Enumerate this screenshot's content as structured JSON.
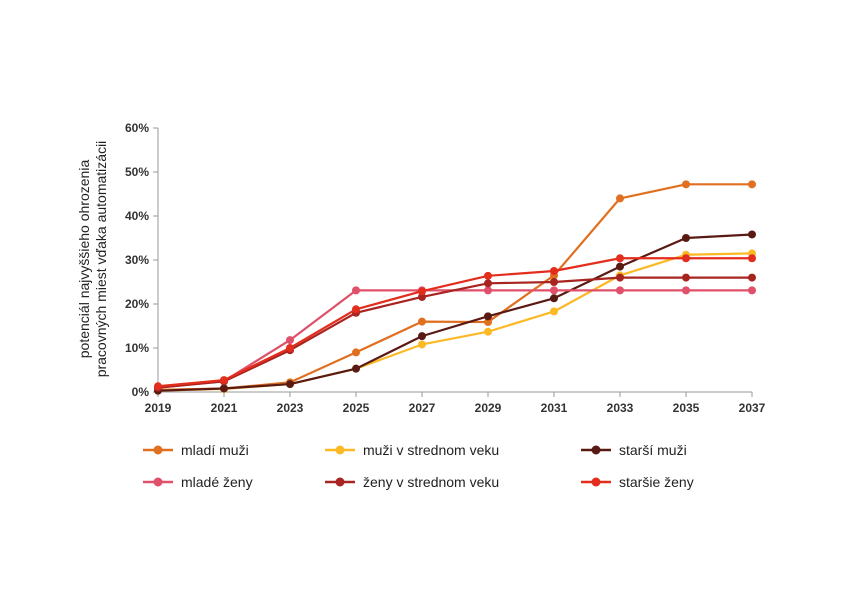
{
  "chart_data": {
    "type": "line",
    "ylabel": "potenciál najvyššieho ohrozenia pracovných miest vďaka automatizácii",
    "ylabel_lines": [
      "potenciál najvyššieho ohrozenia",
      "pracovných miest vďaka automatizácii"
    ],
    "x": [
      2019,
      2021,
      2023,
      2025,
      2027,
      2029,
      2031,
      2033,
      2035,
      2037
    ],
    "x_tick_labels": [
      "2019",
      "2021",
      "2023",
      "2025",
      "2027",
      "2029",
      "2031",
      "2033",
      "2035",
      "2037"
    ],
    "ylim": [
      0,
      60
    ],
    "y_ticks": [
      0,
      10,
      20,
      30,
      40,
      50,
      60
    ],
    "y_tick_labels": [
      "0%",
      "10%",
      "20%",
      "30%",
      "40%",
      "50%",
      "60%"
    ],
    "grid": false,
    "legend_position": "bottom",
    "series": [
      {
        "name": "mladí muži",
        "color": "#e07020",
        "values": [
          0.5,
          0.8,
          2.2,
          9.0,
          16.0,
          15.9,
          26.5,
          44.0,
          47.2,
          47.2
        ]
      },
      {
        "name": "muži v strednom veku",
        "color": "#fbb926",
        "values": [
          0.3,
          0.7,
          1.8,
          5.3,
          10.8,
          13.7,
          18.3,
          26.5,
          31.2,
          31.5
        ]
      },
      {
        "name": "starší muži",
        "color": "#5a1a14",
        "values": [
          0.3,
          0.8,
          1.8,
          5.3,
          12.7,
          17.2,
          21.3,
          28.5,
          35.0,
          35.8
        ]
      },
      {
        "name": "mladé ženy",
        "color": "#e0506a",
        "values": [
          1.0,
          2.5,
          11.8,
          23.1,
          23.1,
          23.1,
          23.1,
          23.1,
          23.1,
          23.1
        ]
      },
      {
        "name": "ženy v strednom veku",
        "color": "#a82420",
        "values": [
          1.0,
          2.4,
          9.5,
          18.0,
          21.6,
          24.7,
          25.0,
          26.0,
          26.0,
          26.0
        ]
      },
      {
        "name": "staršie ženy",
        "color": "#e32d1d",
        "values": [
          1.3,
          2.7,
          10.0,
          18.8,
          22.9,
          26.4,
          27.5,
          30.4,
          30.4,
          30.4
        ]
      }
    ]
  }
}
